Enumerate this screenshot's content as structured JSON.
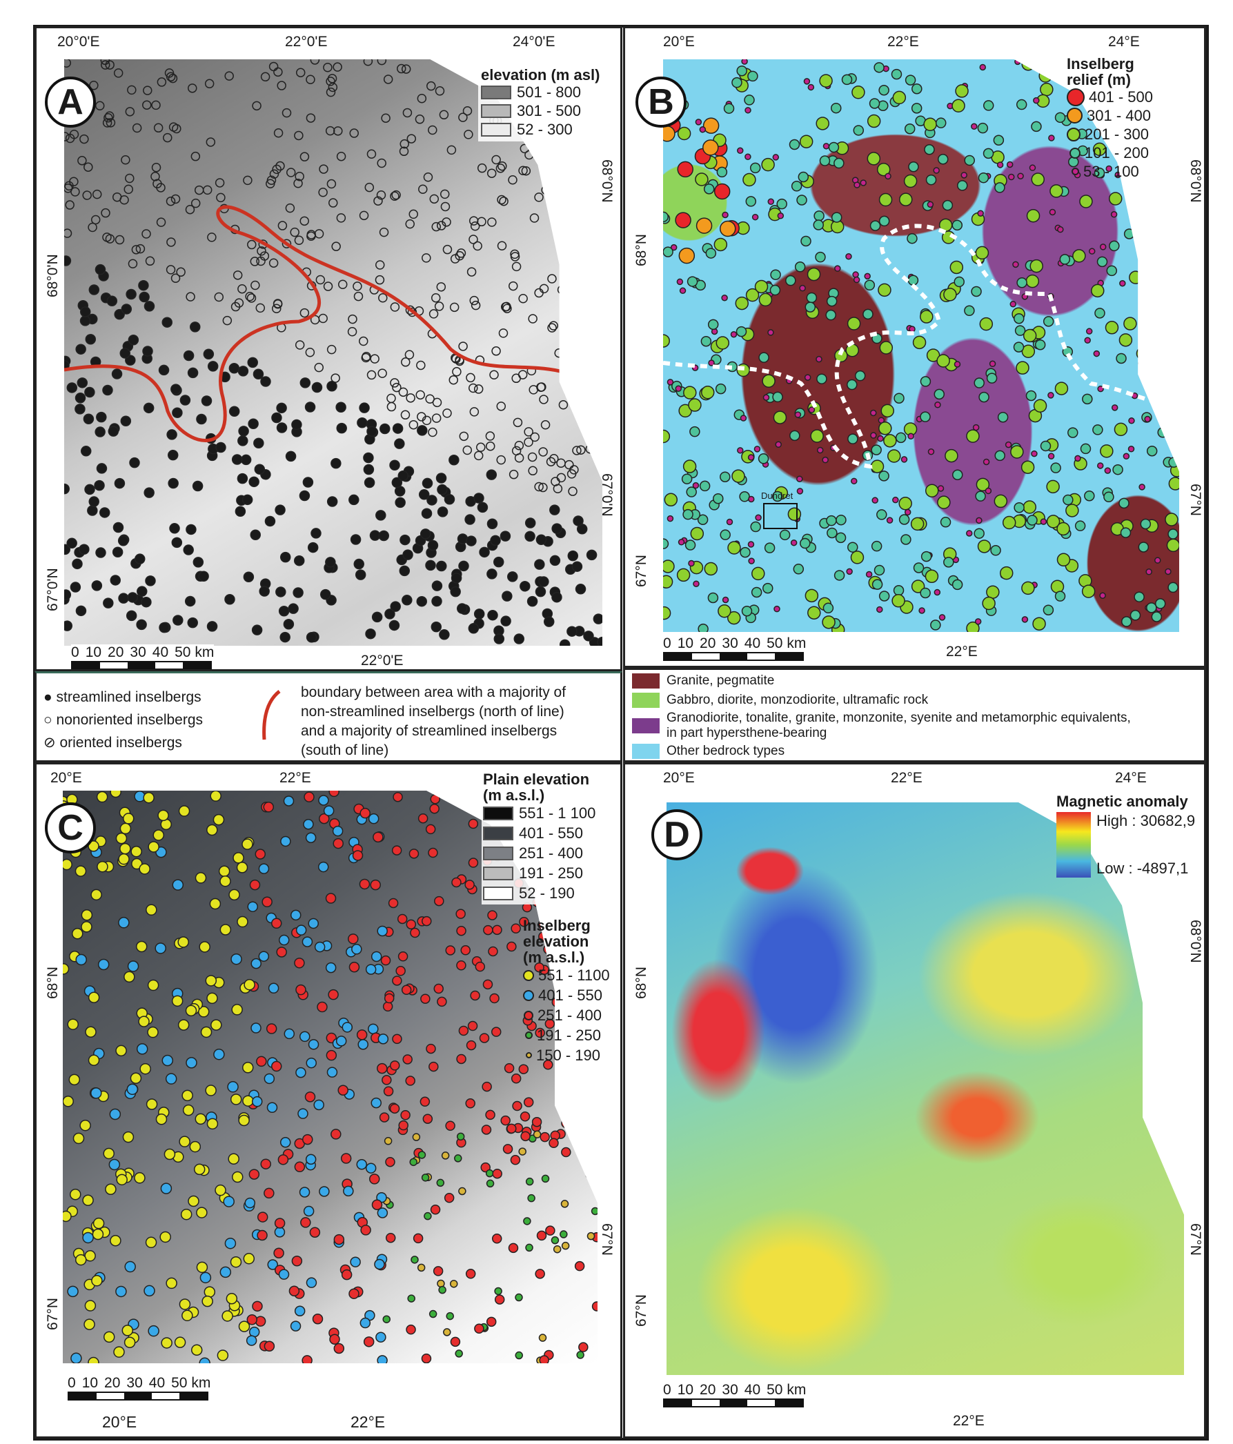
{
  "panelA": {
    "badge": "A",
    "top_ticks": [
      "20°0'E",
      "22°0'E",
      "24°0'E"
    ],
    "left_ticks": [
      "68°0'N",
      "67°0'N"
    ],
    "right_ticks": [
      "68°0'N",
      "67°0'N"
    ],
    "bottom_tick": "22°0'E",
    "legend": {
      "title": "elevation (m asl)",
      "items": [
        {
          "label": "501 - 800",
          "color": "#7a7a7a"
        },
        {
          "label": "301 - 500",
          "color": "#b8b8b8"
        },
        {
          "label": "52 - 300",
          "color": "#ececec"
        }
      ]
    },
    "scale": [
      "0",
      "10",
      "20",
      "30",
      "40",
      "50 km"
    ],
    "symbols": [
      "streamlined inselbergs",
      "nonoriented inselbergs",
      "oriented inselbergs"
    ],
    "boundary_text": "boundary between area with a majority of non-streamlined inselbergs (north of line) and a majority of streamlined inselbergs (south of line)",
    "boundary_color": "#cc3322"
  },
  "panelB": {
    "badge": "B",
    "top_ticks": [
      "20°E",
      "22°E",
      "24°E"
    ],
    "left_ticks": [
      "68°N",
      "67°N"
    ],
    "right_ticks": [
      "68°0'N",
      "67°N"
    ],
    "bottom_tick": "22°E",
    "place_label": "Dundret",
    "legend": {
      "title": "Inselberg relief (m)",
      "items": [
        {
          "label": "401 - 500",
          "color": "#e8262a"
        },
        {
          "label": "301 - 400",
          "color": "#f39a1e"
        },
        {
          "label": "201 - 300",
          "color": "#8ed12e"
        },
        {
          "label": "101 - 200",
          "color": "#4fc39a"
        },
        {
          "label": "53 - 100",
          "color": "#c2238a"
        }
      ]
    },
    "scale": [
      "0",
      "10",
      "20",
      "30",
      "40",
      "50 km"
    ],
    "bedrock": [
      {
        "label": "Granite, pegmatite",
        "color": "#7b2a2e"
      },
      {
        "label": "Gabbro, diorite, monzodiorite, ultramafic rock",
        "color": "#8fd45a"
      },
      {
        "label": "Granodiorite, tonalite, granite, monzonite, syenite and metamorphic equivalents, in part hypersthene-bearing",
        "color": "#7c3c8c"
      },
      {
        "label": "Other bedrock types",
        "color": "#7fd4ee"
      }
    ]
  },
  "panelC": {
    "badge": "C",
    "top_ticks": [
      "20°E",
      "22°E"
    ],
    "left_ticks": [
      "68°N",
      "67°N"
    ],
    "right_ticks": [
      "67°N"
    ],
    "bottom_ticks": [
      "20°E",
      "22°E"
    ],
    "legend_plain": {
      "title": "Plain elevation (m a.s.l.)",
      "items": [
        {
          "label": "551 - 1 100",
          "color": "#0d0d0d"
        },
        {
          "label": "401 - 550",
          "color": "#3b3f44"
        },
        {
          "label": "251 - 400",
          "color": "#7d8085"
        },
        {
          "label": "191 - 250",
          "color": "#bcbcbc"
        },
        {
          "label": "52 - 190",
          "color": "#ffffff"
        }
      ]
    },
    "legend_insel": {
      "title": "Inselberg elevation (m a.s.l.)",
      "items": [
        {
          "label": "551 - 1100",
          "color": "#e3e321"
        },
        {
          "label": "401 - 550",
          "color": "#3aa8e8"
        },
        {
          "label": "251 - 400",
          "color": "#e62e2e"
        },
        {
          "label": "191 - 250",
          "color": "#3cae3c"
        },
        {
          "label": "150 - 190",
          "color": "#d9b43a"
        }
      ]
    },
    "scale": [
      "0",
      "10",
      "20",
      "30",
      "40",
      "50 km"
    ]
  },
  "panelD": {
    "badge": "D",
    "top_ticks": [
      "20°E",
      "22°E",
      "24°E"
    ],
    "left_ticks": [
      "68°N",
      "67°N"
    ],
    "right_ticks": [
      "68°0'N",
      "67°N"
    ],
    "bottom_tick": "22°E",
    "legend": {
      "title": "Magnetic anomaly",
      "high": "High : 30682,9",
      "low": "Low : -4897,1"
    },
    "scale": [
      "0",
      "10",
      "20",
      "30",
      "40",
      "50 km"
    ]
  }
}
